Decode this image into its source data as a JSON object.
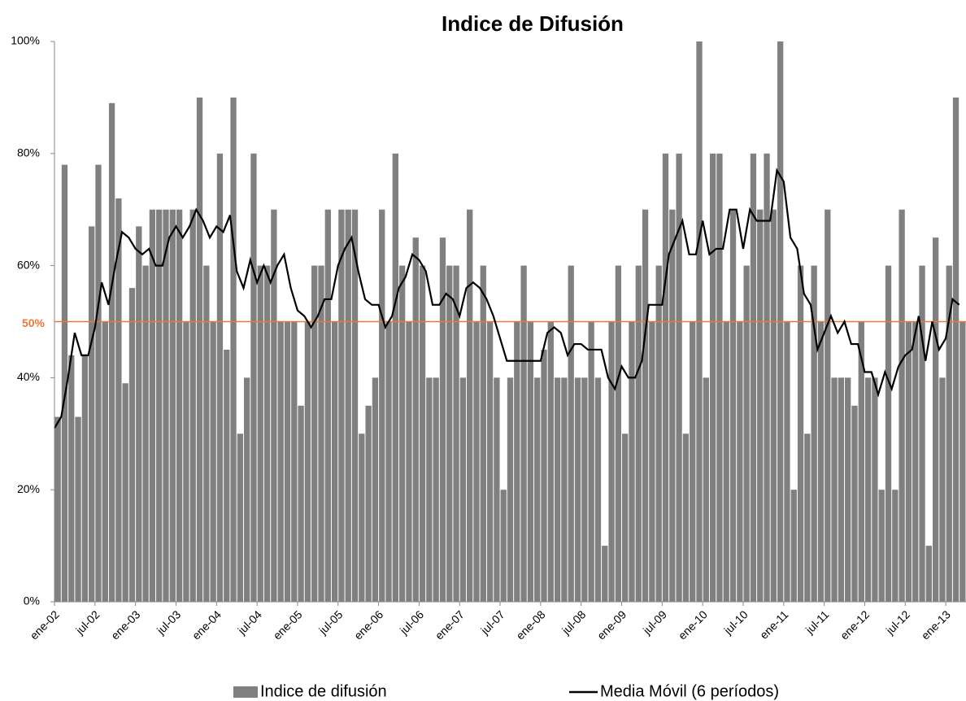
{
  "chart_data": {
    "type": "bar_line",
    "title": "Indice de Difusión",
    "categories": [
      "ene-02",
      null,
      null,
      null,
      null,
      null,
      "jul-02",
      null,
      null,
      null,
      null,
      null,
      "ene-03",
      null,
      null,
      null,
      null,
      null,
      "jul-03",
      null,
      null,
      null,
      null,
      null,
      "ene-04",
      null,
      null,
      null,
      null,
      null,
      "jul-04",
      null,
      null,
      null,
      null,
      null,
      "ene-05",
      null,
      null,
      null,
      null,
      null,
      "jul-05",
      null,
      null,
      null,
      null,
      null,
      "ene-06",
      null,
      null,
      null,
      null,
      null,
      "jul-06",
      null,
      null,
      null,
      null,
      null,
      "ene-07",
      null,
      null,
      null,
      null,
      null,
      "jul-07",
      null,
      null,
      null,
      null,
      null,
      "ene-08",
      null,
      null,
      null,
      null,
      null,
      "jul-08",
      null,
      null,
      null,
      null,
      null,
      "ene-09",
      null,
      null,
      null,
      null,
      null,
      "jul-09",
      null,
      null,
      null,
      null,
      null,
      "ene-10",
      null,
      null,
      null,
      null,
      null,
      "jul-10",
      null,
      null,
      null,
      null,
      null,
      "ene-11",
      null,
      null,
      null,
      null,
      null,
      "jul-11",
      null,
      null,
      null,
      null,
      null,
      "ene-12",
      null,
      null,
      null,
      null,
      null,
      "jul-12",
      null,
      null,
      null,
      null,
      null,
      "ene-13",
      null,
      null
    ],
    "series": [
      {
        "name": "Indice de difusión",
        "kind": "bar",
        "color": "#808080",
        "values": [
          33,
          78,
          44,
          33,
          44,
          67,
          78,
          50,
          89,
          72,
          39,
          56,
          67,
          60,
          70,
          70,
          70,
          70,
          70,
          50,
          70,
          90,
          60,
          50,
          80,
          45,
          90,
          30,
          40,
          80,
          60,
          60,
          70,
          50,
          50,
          50,
          35,
          50,
          60,
          60,
          70,
          50,
          70,
          70,
          70,
          30,
          35,
          40,
          70,
          50,
          80,
          60,
          50,
          65,
          60,
          40,
          40,
          65,
          60,
          60,
          40,
          70,
          50,
          60,
          50,
          40,
          20,
          40,
          50,
          60,
          50,
          40,
          45,
          50,
          40,
          40,
          60,
          40,
          40,
          50,
          40,
          10,
          50,
          60,
          30,
          50,
          60,
          70,
          50,
          60,
          80,
          70,
          80,
          30,
          50,
          100,
          40,
          80,
          80,
          50,
          70,
          50,
          60,
          80,
          70,
          80,
          70,
          100,
          50,
          20,
          60,
          30,
          60,
          50,
          70,
          40,
          40,
          40,
          35,
          50,
          40,
          40,
          20,
          60,
          20,
          70,
          50,
          50,
          60,
          10,
          65,
          40,
          60,
          90,
          50
        ]
      },
      {
        "name": "Media Móvil (6 períodos)",
        "kind": "line",
        "color": "#000000",
        "values": [
          31,
          33,
          40,
          48,
          44,
          44,
          49,
          57,
          53,
          60,
          66,
          65,
          63,
          62,
          63,
          60,
          60,
          65,
          67,
          65,
          67,
          70,
          68,
          65,
          67,
          66,
          69,
          59,
          56,
          61,
          57,
          60,
          57,
          60,
          62,
          56,
          52,
          51,
          49,
          51,
          54,
          54,
          60,
          63,
          65,
          59,
          54,
          53,
          53,
          49,
          51,
          56,
          58,
          62,
          61,
          59,
          53,
          53,
          55,
          54,
          51,
          56,
          57,
          56,
          54,
          51,
          47,
          43,
          43,
          43,
          43,
          43,
          43,
          48,
          49,
          48,
          44,
          46,
          46,
          45,
          45,
          45,
          40,
          38,
          42,
          40,
          40,
          43,
          53,
          53,
          53,
          62,
          65,
          68,
          62,
          62,
          68,
          62,
          63,
          63,
          70,
          70,
          63,
          70,
          68,
          68,
          68,
          77,
          75,
          65,
          63,
          55,
          53,
          45,
          48,
          51,
          48,
          50,
          46,
          46,
          41,
          41,
          37,
          41,
          38,
          42,
          44,
          45,
          51,
          43,
          50,
          45,
          47,
          54,
          53
        ]
      }
    ],
    "reference_line": {
      "value": 50,
      "label": "50%",
      "color": "#e8793a"
    },
    "ylim": [
      0,
      100
    ],
    "yticks": [
      {
        "value": 0,
        "label": "0%"
      },
      {
        "value": 20,
        "label": "20%"
      },
      {
        "value": 40,
        "label": "40%"
      },
      {
        "value": 60,
        "label": "60%"
      },
      {
        "value": 80,
        "label": "80%"
      },
      {
        "value": 100,
        "label": "100%"
      }
    ],
    "legend": "bottom"
  }
}
